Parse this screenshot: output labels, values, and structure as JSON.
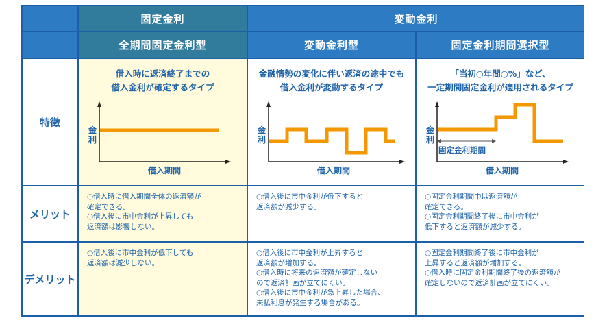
{
  "header": {
    "group_fixed": "固定金利",
    "group_variable": "変動金利",
    "types": [
      "全期間固定金利型",
      "変動金利型",
      "固定金利期間選択型"
    ]
  },
  "row_labels": {
    "features": "特徴",
    "merits": "メリット",
    "demerits": "デメリット"
  },
  "features": [
    {
      "desc": [
        "借入時に返済終了までの",
        "借入金利が確定するタイプ"
      ]
    },
    {
      "desc": [
        "金融情勢の変化に伴い返済の途中でも",
        "借入金利が変動するタイプ"
      ]
    },
    {
      "desc": [
        "「当初○年間○%」など、",
        "一定期間固定金利が適用されるタイプ"
      ],
      "annotation": "固定金利期間"
    }
  ],
  "chart_labels": {
    "y_axis_top": "金",
    "y_axis_bottom": "利",
    "x_axis": "借入期間"
  },
  "merits": [
    [
      [
        "○借入時に借入期間全体の返済額が",
        "確定できる。"
      ],
      [
        "○借入後に市中金利が上昇しても",
        "返済額は影響しない。"
      ]
    ],
    [
      [
        "○借入後に市中金利が低下すると",
        "返済額が減少する。"
      ]
    ],
    [
      [
        "○固定金利期間中は返済額が",
        "確定できる。"
      ],
      [
        "○固定金利期間終了後に市中金利が",
        "低下すると返済額が減少する。"
      ]
    ]
  ],
  "demerits": [
    [
      [
        "○借入後に市中金利が低下しても",
        "返済額は減少しない。"
      ]
    ],
    [
      [
        "○借入後に市中金利が上昇すると",
        "返済額が増加する。"
      ],
      [
        "○借入時に将来の返済額が確定しない",
        "ので返済計画が立てにくい。"
      ],
      [
        "○借入後に市中金利が急上昇した場合、",
        "未払利息が発生する場合がある。"
      ]
    ],
    [
      [
        "○固定金利期間終了後に市中金利が",
        "上昇すると返済額が増加する。"
      ],
      [
        "○借入時に固定金利期間終了後の返済額が",
        "確定しないので返済計画が立てにくい。"
      ]
    ]
  ],
  "colors": {
    "header": "#2d7cc3",
    "header_fixed": "#317b9c",
    "border": "#1a5fa8",
    "text": "#1f63a8",
    "fixed_bg": "#fffbdc",
    "rate_line": "#f39800"
  }
}
